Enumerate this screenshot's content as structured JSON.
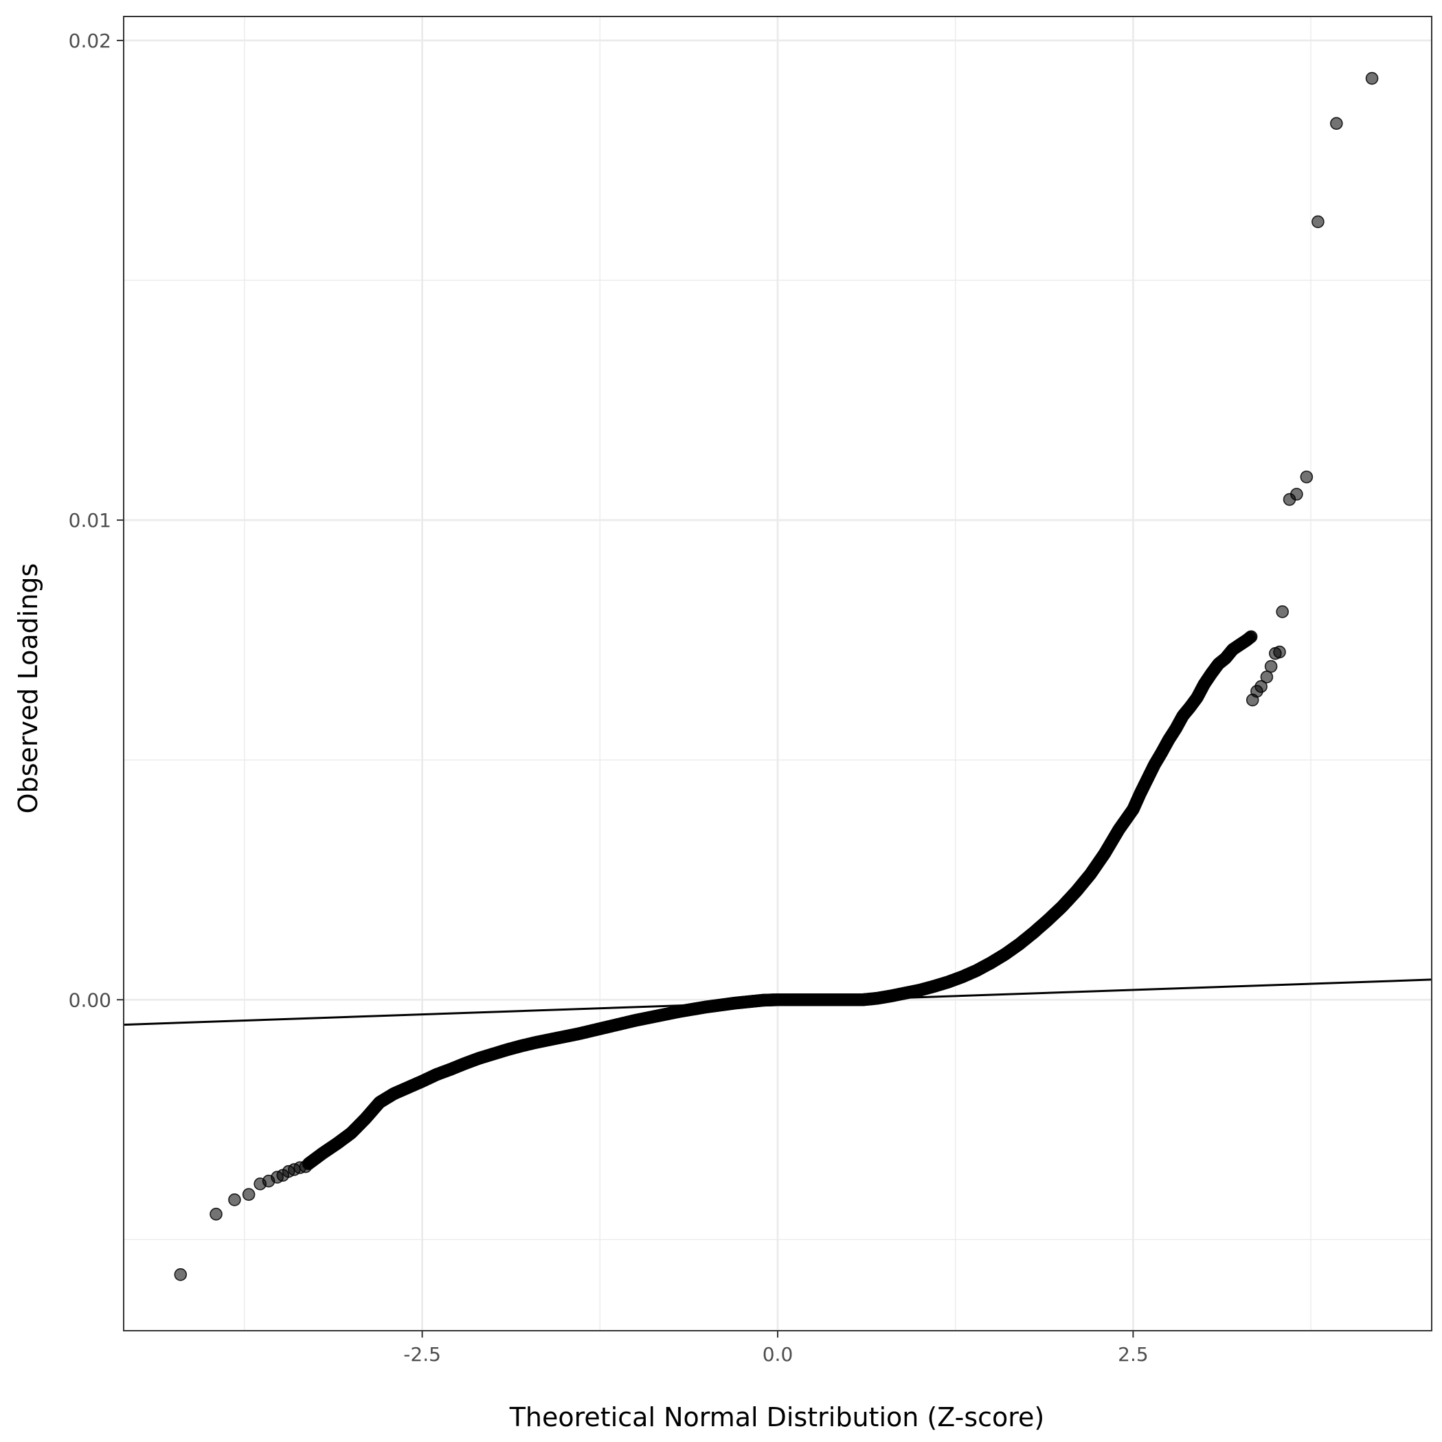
{
  "chart_data": {
    "type": "scatter",
    "title": "",
    "xlabel": "Theoretical Normal Distribution (Z-score)",
    "ylabel": "Observed Loadings",
    "xlim": [
      -4.6,
      4.6
    ],
    "ylim": [
      -0.0069,
      0.0205
    ],
    "x_ticks": [
      -2.5,
      0.0,
      2.5
    ],
    "x_tick_labels": [
      "-2.5",
      "0.0",
      "2.5"
    ],
    "y_ticks": [
      0.0,
      0.01,
      0.02
    ],
    "y_tick_labels": [
      "0.00",
      "0.01",
      "0.02"
    ],
    "x_minor_gridlines": [
      -3.75,
      -1.25,
      1.25,
      3.75
    ],
    "y_minor_gridlines": [
      -0.005,
      0.005,
      0.015
    ],
    "grid": true,
    "legend": "none",
    "reference_line": {
      "x": [
        -4.6,
        4.6
      ],
      "y": [
        -0.00052,
        0.00042
      ]
    },
    "series": [
      {
        "color": "#000000",
        "opacity": 0.55,
        "outlier_points": [
          [
            -4.2,
            -0.00573
          ],
          [
            -3.95,
            -0.00447
          ],
          [
            -3.82,
            -0.00417
          ],
          [
            -3.72,
            -0.00406
          ],
          [
            -3.64,
            -0.00384
          ],
          [
            -3.58,
            -0.00378
          ],
          [
            -3.52,
            -0.0037
          ],
          [
            -3.48,
            -0.00366
          ],
          [
            -3.44,
            -0.00358
          ],
          [
            -3.4,
            -0.00354
          ],
          [
            -3.36,
            -0.0035
          ],
          [
            -3.32,
            -0.00348
          ],
          [
            3.53,
            0.00725
          ],
          [
            3.5,
            0.00722
          ],
          [
            3.47,
            0.00695
          ],
          [
            3.44,
            0.00673
          ],
          [
            3.4,
            0.00653
          ],
          [
            3.37,
            0.00643
          ],
          [
            3.34,
            0.00625
          ],
          [
            3.55,
            0.00809
          ],
          [
            3.6,
            0.01043
          ],
          [
            3.65,
            0.01054
          ],
          [
            3.72,
            0.0109
          ],
          [
            3.8,
            0.01622
          ],
          [
            3.93,
            0.01827
          ],
          [
            4.18,
            0.01921
          ]
        ],
        "curve": [
          [
            -3.3,
            -0.00342
          ],
          [
            -3.2,
            -0.0032
          ],
          [
            -3.1,
            -0.003
          ],
          [
            -3.0,
            -0.00278
          ],
          [
            -2.9,
            -0.00248
          ],
          [
            -2.8,
            -0.00214
          ],
          [
            -2.7,
            -0.00196
          ],
          [
            -2.6,
            -0.00183
          ],
          [
            -2.5,
            -0.0017
          ],
          [
            -2.4,
            -0.00156
          ],
          [
            -2.3,
            -0.00145
          ],
          [
            -2.2,
            -0.00133
          ],
          [
            -2.1,
            -0.00122
          ],
          [
            -2.0,
            -0.00113
          ],
          [
            -1.9,
            -0.00104
          ],
          [
            -1.8,
            -0.00096
          ],
          [
            -1.7,
            -0.00089
          ],
          [
            -1.6,
            -0.00083
          ],
          [
            -1.5,
            -0.00077
          ],
          [
            -1.4,
            -0.00071
          ],
          [
            -1.3,
            -0.00064
          ],
          [
            -1.2,
            -0.00057
          ],
          [
            -1.1,
            -0.0005
          ],
          [
            -1.0,
            -0.00043
          ],
          [
            -0.9,
            -0.00037
          ],
          [
            -0.8,
            -0.00031
          ],
          [
            -0.7,
            -0.00025
          ],
          [
            -0.6,
            -0.0002
          ],
          [
            -0.5,
            -0.00015
          ],
          [
            -0.4,
            -0.00011
          ],
          [
            -0.3,
            -7e-05
          ],
          [
            -0.2,
            -4e-05
          ],
          [
            -0.1,
            -1e-05
          ],
          [
            0.0,
            0.0
          ],
          [
            0.2,
            0.0
          ],
          [
            0.4,
            0.0
          ],
          [
            0.6,
            0.0
          ],
          [
            0.7,
            3e-05
          ],
          [
            0.8,
            8e-05
          ],
          [
            0.9,
            0.00014
          ],
          [
            1.0,
            0.0002
          ],
          [
            1.1,
            0.00028
          ],
          [
            1.2,
            0.00037
          ],
          [
            1.3,
            0.00048
          ],
          [
            1.4,
            0.00061
          ],
          [
            1.5,
            0.00077
          ],
          [
            1.6,
            0.00095
          ],
          [
            1.7,
            0.00116
          ],
          [
            1.8,
            0.0014
          ],
          [
            1.9,
            0.00166
          ],
          [
            2.0,
            0.00194
          ],
          [
            2.1,
            0.00226
          ],
          [
            2.2,
            0.00262
          ],
          [
            2.3,
            0.00305
          ],
          [
            2.4,
            0.00355
          ],
          [
            2.5,
            0.00397
          ],
          [
            2.55,
            0.0043
          ],
          [
            2.6,
            0.0046
          ],
          [
            2.65,
            0.0049
          ],
          [
            2.7,
            0.00515
          ],
          [
            2.75,
            0.00542
          ],
          [
            2.8,
            0.00565
          ],
          [
            2.85,
            0.00592
          ],
          [
            2.9,
            0.0061
          ],
          [
            2.95,
            0.0063
          ],
          [
            3.0,
            0.00658
          ],
          [
            3.05,
            0.0068
          ],
          [
            3.1,
            0.007
          ],
          [
            3.15,
            0.00712
          ],
          [
            3.2,
            0.0073
          ],
          [
            3.25,
            0.0074
          ],
          [
            3.3,
            0.0075
          ],
          [
            3.33,
            0.00757
          ]
        ]
      }
    ]
  }
}
